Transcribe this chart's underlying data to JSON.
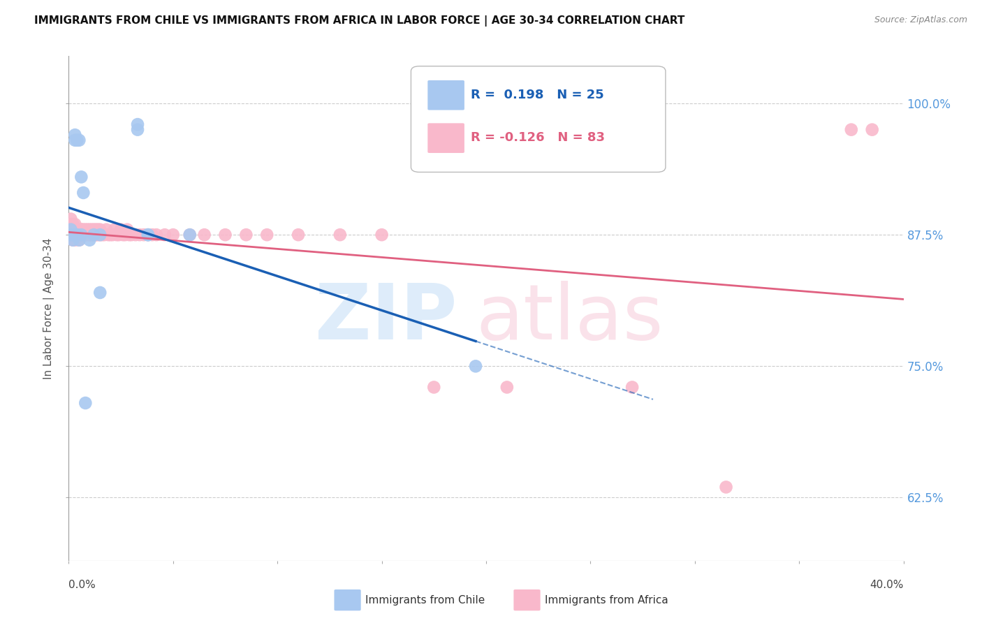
{
  "title": "IMMIGRANTS FROM CHILE VS IMMIGRANTS FROM AFRICA IN LABOR FORCE | AGE 30-34 CORRELATION CHART",
  "source": "Source: ZipAtlas.com",
  "ylabel": "In Labor Force | Age 30-34",
  "yticks": [
    0.625,
    0.75,
    0.875,
    1.0
  ],
  "ytick_labels": [
    "62.5%",
    "75.0%",
    "87.5%",
    "100.0%"
  ],
  "xlim": [
    0.0,
    0.4
  ],
  "ylim": [
    0.565,
    1.045
  ],
  "chile_R": 0.198,
  "chile_N": 25,
  "africa_R": -0.126,
  "africa_N": 83,
  "chile_color": "#a8c8f0",
  "africa_color": "#f9b8cb",
  "chile_line_color": "#1a5fb4",
  "africa_line_color": "#e06080",
  "background_color": "#ffffff",
  "chile_x": [
    0.001,
    0.001,
    0.001,
    0.002,
    0.002,
    0.002,
    0.003,
    0.003,
    0.003,
    0.004,
    0.004,
    0.005,
    0.005,
    0.006,
    0.006,
    0.007,
    0.008,
    0.009,
    0.012,
    0.016,
    0.033,
    0.033,
    0.035,
    0.038,
    0.058
  ],
  "chile_y": [
    0.875,
    0.88,
    0.885,
    0.87,
    0.875,
    0.88,
    0.875,
    0.965,
    0.97,
    0.875,
    0.965,
    0.87,
    0.965,
    0.875,
    0.93,
    0.915,
    0.715,
    0.87,
    0.875,
    0.83,
    0.975,
    0.98,
    0.975,
    0.875,
    0.875
  ],
  "africa_x": [
    0.001,
    0.001,
    0.001,
    0.001,
    0.001,
    0.001,
    0.001,
    0.001,
    0.002,
    0.002,
    0.002,
    0.002,
    0.002,
    0.003,
    0.003,
    0.003,
    0.003,
    0.004,
    0.004,
    0.005,
    0.005,
    0.005,
    0.005,
    0.006,
    0.006,
    0.006,
    0.007,
    0.007,
    0.007,
    0.008,
    0.008,
    0.009,
    0.009,
    0.01,
    0.01,
    0.011,
    0.011,
    0.012,
    0.012,
    0.013,
    0.013,
    0.014,
    0.014,
    0.015,
    0.016,
    0.017,
    0.018,
    0.019,
    0.02,
    0.021,
    0.022,
    0.023,
    0.024,
    0.025,
    0.026,
    0.028,
    0.03,
    0.032,
    0.034,
    0.036,
    0.038,
    0.04,
    0.042,
    0.044,
    0.047,
    0.052,
    0.058,
    0.068,
    0.075,
    0.085,
    0.095,
    0.105,
    0.12,
    0.135,
    0.155,
    0.175,
    0.21,
    0.245,
    0.28,
    0.315,
    0.355,
    0.375,
    0.385
  ],
  "africa_y": [
    0.88,
    0.885,
    0.89,
    0.895,
    0.875,
    0.87,
    0.88,
    0.875,
    0.875,
    0.88,
    0.885,
    0.87,
    0.875,
    0.875,
    0.88,
    0.875,
    0.885,
    0.875,
    0.88,
    0.875,
    0.87,
    0.88,
    0.875,
    0.875,
    0.88,
    0.875,
    0.875,
    0.88,
    0.875,
    0.875,
    0.88,
    0.875,
    0.88,
    0.875,
    0.88,
    0.875,
    0.88,
    0.875,
    0.88,
    0.875,
    0.87,
    0.875,
    0.88,
    0.875,
    0.875,
    0.875,
    0.87,
    0.875,
    0.875,
    0.875,
    0.875,
    0.875,
    0.875,
    0.875,
    0.875,
    0.875,
    0.875,
    0.875,
    0.875,
    0.875,
    0.875,
    0.875,
    0.875,
    0.875,
    0.875,
    0.875,
    0.875,
    0.875,
    0.875,
    0.875,
    0.875,
    0.875,
    0.875,
    0.875,
    0.875,
    0.875,
    0.73,
    0.73,
    0.73,
    0.635,
    0.975,
    0.975,
    0.975
  ]
}
